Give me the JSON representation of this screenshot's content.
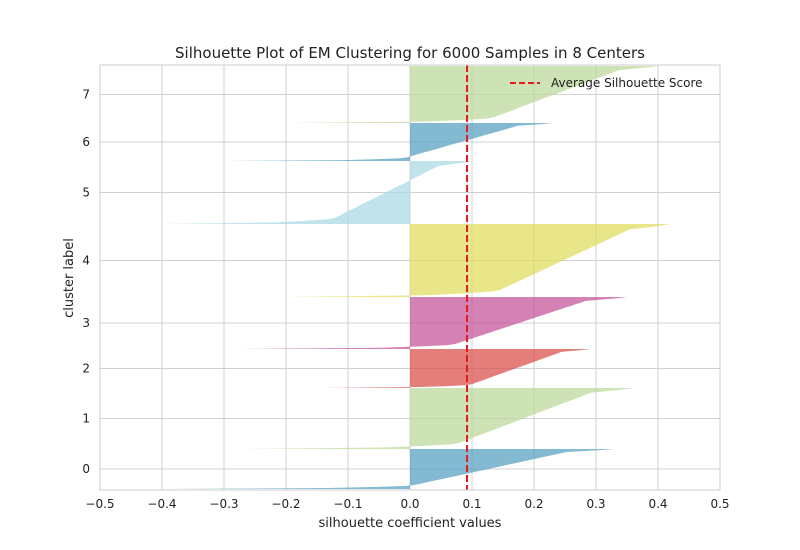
{
  "chart_data": {
    "type": "area",
    "title": "Silhouette Plot of EM Clustering for 6000 Samples in 8 Centers",
    "xlabel": "silhouette coefficient values",
    "ylabel": "cluster label",
    "xlim": [
      -0.5,
      0.5
    ],
    "xticks": [
      -0.5,
      -0.4,
      -0.3,
      -0.2,
      -0.1,
      0.0,
      0.1,
      0.2,
      0.3,
      0.4,
      0.5
    ],
    "xtick_labels": [
      "−0.5",
      "−0.4",
      "−0.3",
      "−0.2",
      "−0.1",
      "0.0",
      "0.1",
      "0.2",
      "0.3",
      "0.4",
      "0.5"
    ],
    "grid": true,
    "legend_position": "top-right",
    "average_silhouette_score": 0.092,
    "average_label": "Average Silhouette Score",
    "average_color": "#e31a1c",
    "clusters": [
      {
        "label": "0",
        "color": "#5ba3c2",
        "min": -0.4,
        "max": 0.33
      },
      {
        "label": "1",
        "color": "#bcd99c",
        "min": -0.275,
        "max": 0.36
      },
      {
        "label": "2",
        "color": "#d9534f",
        "min": -0.14,
        "max": 0.29
      },
      {
        "label": "3",
        "color": "#c4589a",
        "min": -0.275,
        "max": 0.35
      },
      {
        "label": "4",
        "color": "#e2dd62",
        "min": -0.2,
        "max": 0.42
      },
      {
        "label": "5",
        "color": "#acdae6",
        "min": -0.4,
        "max": 0.1
      },
      {
        "label": "6",
        "color": "#5ba3c2",
        "min": -0.3,
        "max": 0.23
      },
      {
        "label": "7",
        "color": "#bcd99c",
        "min": -0.2,
        "max": 0.4
      }
    ]
  }
}
